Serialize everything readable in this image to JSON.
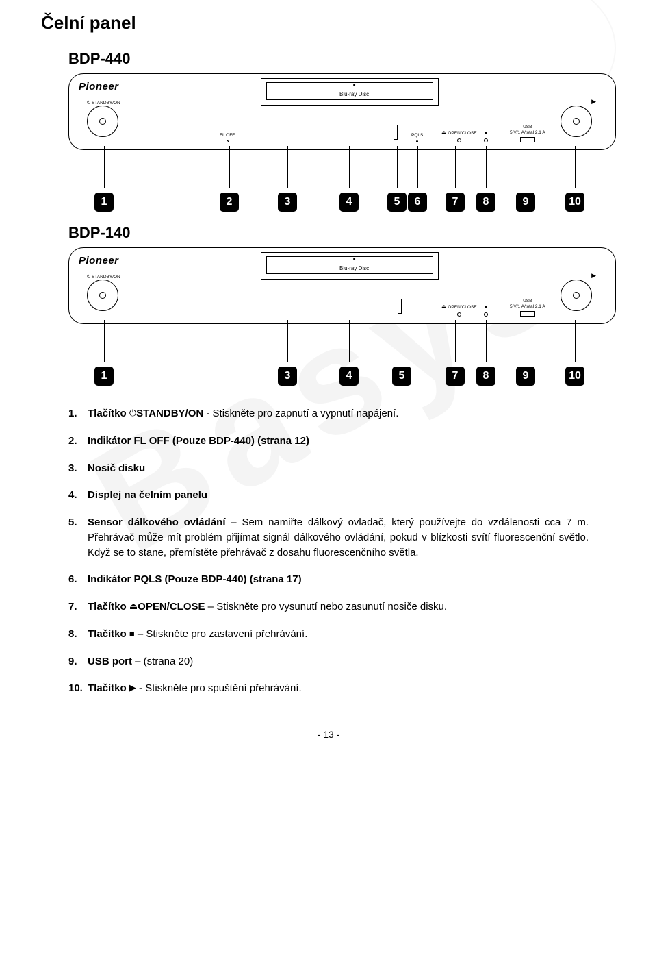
{
  "page": {
    "title": "Čelní panel",
    "pagenum": "- 13 -",
    "watermark": "Basys"
  },
  "models": {
    "m440": "BDP-440",
    "m140": "BDP-140"
  },
  "brand": "Pioneer",
  "bluray": {
    "top": "●",
    "bottom": "Blu-ray Disc"
  },
  "panel440": {
    "standby": {
      "label": "STANDBY/ON",
      "icon": "⏻"
    },
    "floff": "FL OFF",
    "pqls": "PQLS",
    "open": {
      "label": "OPEN/CLOSE",
      "icon": "⏏"
    },
    "stop": "■",
    "usb": {
      "l1": "USB",
      "l2": "5 V/1 A/total 2.1 A"
    },
    "play": "▶"
  },
  "panel140": {
    "standby": {
      "label": "STANDBY/ON",
      "icon": "⏻"
    },
    "open": {
      "label": "OPEN/CLOSE",
      "icon": "⏏"
    },
    "stop": "■",
    "usb": {
      "l1": "USB",
      "l2": "5 V/1 A/total 2.1 A"
    },
    "play": "▶"
  },
  "callouts440": [
    "1",
    "2",
    "3",
    "4",
    "5",
    "6",
    "7",
    "8",
    "9",
    "10"
  ],
  "callouts140": [
    "1",
    "3",
    "4",
    "5",
    "7",
    "8",
    "9",
    "10"
  ],
  "callout_positions_440": [
    52,
    235,
    320,
    410,
    480,
    510,
    565,
    610,
    668,
    740
  ],
  "callout_positions_140": [
    52,
    320,
    410,
    487,
    565,
    610,
    668,
    740
  ],
  "list": [
    {
      "n": "1.",
      "prefix": "Tlačítko ",
      "icon": "⏻",
      "bold": "STANDBY/ON",
      "rest": " - Stiskněte pro zapnutí a vypnutí napájení."
    },
    {
      "n": "2.",
      "prefix": "",
      "icon": "",
      "bold": "Indikátor FL OFF (Pouze BDP-440) (strana 12)",
      "rest": ""
    },
    {
      "n": "3.",
      "prefix": "",
      "icon": "",
      "bold": "Nosič disku",
      "rest": ""
    },
    {
      "n": "4.",
      "prefix": "",
      "icon": "",
      "bold": "Displej na čelním panelu",
      "rest": ""
    },
    {
      "n": "5.",
      "prefix": "",
      "icon": "",
      "bold": "Sensor dálkového ovládání",
      "rest": " – Sem namiřte dálkový ovladač, který používejte do vzdálenosti cca 7 m. Přehrávač může mít problém přijímat signál dálkového ovládání, pokud v blízkosti svítí fluorescenční světlo. Když se to stane, přemístěte přehrávač z dosahu fluorescenčního světla."
    },
    {
      "n": "6.",
      "prefix": "",
      "icon": "",
      "bold": "Indikátor PQLS (Pouze BDP-440) (strana 17)",
      "rest": ""
    },
    {
      "n": "7.",
      "prefix": "Tlačítko ",
      "icon": "⏏",
      "bold": "OPEN/CLOSE",
      "rest": " – Stiskněte pro vysunutí nebo zasunutí nosiče disku."
    },
    {
      "n": "8.",
      "prefix": "Tlačítko ",
      "icon": "■",
      "bold": "",
      "rest": " – Stiskněte pro zastavení přehrávání."
    },
    {
      "n": "9.",
      "prefix": "",
      "icon": "",
      "bold": "USB port",
      "rest": " – (strana 20)"
    },
    {
      "n": "10.",
      "prefix": "Tlačítko ",
      "icon": "▶",
      "bold": "",
      "rest": " - Stiskněte pro spuštění přehrávání."
    }
  ],
  "colors": {
    "text": "#000000",
    "bg": "#ffffff",
    "badge_bg": "#000000",
    "badge_fg": "#ffffff",
    "watermark": "rgba(180,180,180,0.14)"
  }
}
